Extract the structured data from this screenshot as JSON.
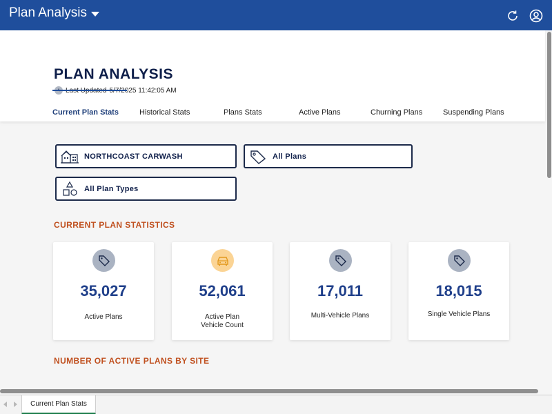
{
  "app": {
    "title": "Plan Analysis"
  },
  "header": {
    "page_title": "PLAN ANALYSIS",
    "last_updated_label": "Last Updated",
    "last_updated_value": "5/7/2025 11:42:05 AM"
  },
  "tabs": [
    {
      "label": "Current Plan Stats",
      "active": true
    },
    {
      "label": "Historical Stats",
      "active": false
    },
    {
      "label": "Plans Stats",
      "active": false
    },
    {
      "label": "Active Plans",
      "active": false
    },
    {
      "label": "Churning Plans",
      "active": false
    },
    {
      "label": "Suspending Plans",
      "active": false
    }
  ],
  "filters": {
    "site": "NORTHCOAST CARWASH",
    "plans": "All Plans",
    "plan_types": "All Plan Types"
  },
  "sections": {
    "current_stats_title": "CURRENT PLAN STATISTICS",
    "active_by_site_title": "NUMBER OF ACTIVE PLANS BY SITE"
  },
  "cards": [
    {
      "value": "35,027",
      "label": "Active Plans",
      "icon": "tag-icon"
    },
    {
      "value": "52,061",
      "label_line1": "Active Plan",
      "label_line2": "Vehicle Count",
      "icon": "car-icon"
    },
    {
      "value": "17,011",
      "label": "Multi-Vehicle Plans",
      "icon": "tag-icon"
    },
    {
      "value": "18,015",
      "label": "Single Vehicle Plans",
      "icon": "tag-icon"
    }
  ],
  "sheet_tabs": [
    {
      "label": "Current Plan Stats",
      "active": true
    }
  ],
  "colors": {
    "topbar": "#1f4e9c",
    "accent_title": "#0f1f4a",
    "section_title": "#c0501f",
    "value": "#1f3f8a",
    "icon_gray": "#aab3c2",
    "icon_orange": "#fbd495",
    "sheet_tab_accent": "#1d7d4b"
  }
}
